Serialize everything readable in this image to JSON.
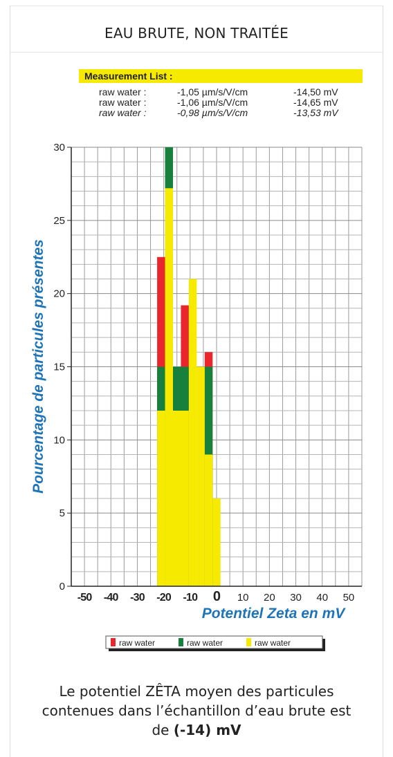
{
  "header": {
    "title": "EAU BRUTE, NON TRAITÉE"
  },
  "measurement_list": {
    "title": "Measurement List :",
    "rows": [
      {
        "label": "raw water :",
        "mobility": "-1,05 µm/s/V/cm",
        "zeta": "-14,50 mV"
      },
      {
        "label": "raw water :",
        "mobility": "-1,06 µm/s/V/cm",
        "zeta": "-14,65 mV"
      },
      {
        "label": "raw water :",
        "mobility": "-0,98 µm/s/V/cm",
        "zeta": "-13,53 mV"
      }
    ]
  },
  "chart_data": {
    "type": "bar",
    "ylabel": "Pourcentage de particules présentes",
    "xlabel": "Potentiel Zeta en mV",
    "xlim": [
      -55,
      55
    ],
    "ylim": [
      0,
      30
    ],
    "x_ticks": [
      "-50",
      "-40",
      "-30",
      "-20",
      "-10",
      "0",
      "10",
      "20",
      "30",
      "40",
      "50"
    ],
    "y_ticks": [
      "0",
      "5",
      "10",
      "15",
      "20",
      "25",
      "30"
    ],
    "bin_width": 3,
    "grid": true,
    "legend_position": "bottom",
    "colors": {
      "red": "#e8262b",
      "green": "#17803c",
      "yellow": "#f6ea00"
    },
    "series": [
      {
        "name": "raw water",
        "color": "#e8262b",
        "bins": [
          {
            "x0": -22.5,
            "x1": -19.5,
            "value": 22.5
          },
          {
            "x0": -13.5,
            "x1": -10.5,
            "value": 19.2
          },
          {
            "x0": -4.5,
            "x1": -1.5,
            "value": 16
          }
        ]
      },
      {
        "name": "raw water",
        "color": "#17803c",
        "bins": [
          {
            "x0": -22.5,
            "x1": -19.5,
            "value": 15
          },
          {
            "x0": -19.5,
            "x1": -16.5,
            "value": 30
          },
          {
            "x0": -16.5,
            "x1": -10.5,
            "value": 15
          },
          {
            "x0": -4.5,
            "x1": -1.5,
            "value": 15
          }
        ]
      },
      {
        "name": "raw water",
        "color": "#f6ea00",
        "bins": [
          {
            "x0": -22.5,
            "x1": -19.5,
            "value": 12
          },
          {
            "x0": -19.5,
            "x1": -16.5,
            "value": 27.2
          },
          {
            "x0": -16.5,
            "x1": -10.5,
            "value": 12
          },
          {
            "x0": -10.5,
            "x1": -7.5,
            "value": 21
          },
          {
            "x0": -7.5,
            "x1": -4.5,
            "value": 15
          },
          {
            "x0": -4.5,
            "x1": -1.5,
            "value": 9
          },
          {
            "x0": -1.5,
            "x1": 1.5,
            "value": 6
          }
        ]
      }
    ]
  },
  "caption": {
    "line1": "Le potentiel ZÊTA moyen des particules",
    "line2": "contenues dans l’échantillon d’eau brute est",
    "line3_prefix": "de ",
    "line3_value": "(-14) mV"
  }
}
